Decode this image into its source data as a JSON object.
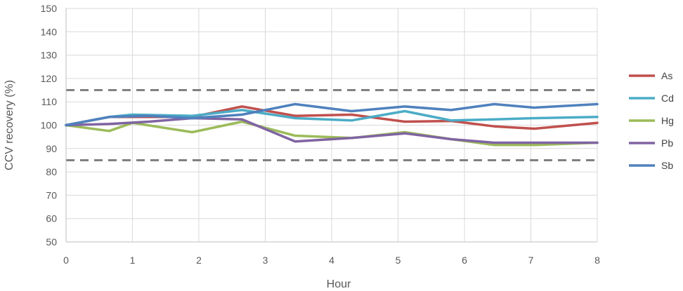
{
  "chart_data": {
    "type": "line",
    "xlabel": "Hour",
    "ylabel": "CCV recovery  (%)",
    "xlim": [
      0,
      8
    ],
    "ylim": [
      50,
      150
    ],
    "xticks": [
      "0",
      "1",
      "2",
      "3",
      "4",
      "5",
      "6",
      "7",
      "8"
    ],
    "yticks": [
      "50",
      "60",
      "70",
      "80",
      "90",
      "100",
      "110",
      "120",
      "130",
      "140",
      "150"
    ],
    "grid": "horizontal",
    "legend_position": "right",
    "control_limits": [
      {
        "value": 115,
        "color": "#808080",
        "style": "dashed"
      },
      {
        "value": 85,
        "color": "#808080",
        "style": "dashed"
      }
    ],
    "series": [
      {
        "name": "As",
        "color": "#C0504D",
        "points": [
          [
            0,
            100
          ],
          [
            0.65,
            103.5
          ],
          [
            1.25,
            103.5
          ],
          [
            1.9,
            103.5
          ],
          [
            2.65,
            108
          ],
          [
            3.45,
            104
          ],
          [
            4.3,
            104.5
          ],
          [
            5.1,
            101.5
          ],
          [
            5.8,
            101.8
          ],
          [
            6.45,
            99.5
          ],
          [
            7.05,
            98.5
          ],
          [
            8,
            101
          ]
        ]
      },
      {
        "name": "Cd",
        "color": "#4BACC6",
        "points": [
          [
            0,
            100
          ],
          [
            0.65,
            103.5
          ],
          [
            1.0,
            104.5
          ],
          [
            1.9,
            104
          ],
          [
            2.65,
            106.5
          ],
          [
            3.45,
            103
          ],
          [
            4.3,
            102
          ],
          [
            5.1,
            106
          ],
          [
            5.8,
            102
          ],
          [
            6.45,
            102.5
          ],
          [
            7.05,
            103
          ],
          [
            8,
            103.5
          ]
        ]
      },
      {
        "name": "Hg",
        "color": "#9BBB59",
        "points": [
          [
            0,
            100
          ],
          [
            0.65,
            97.5
          ],
          [
            1.0,
            101
          ],
          [
            1.9,
            97
          ],
          [
            2.65,
            101.5
          ],
          [
            3.45,
            95.5
          ],
          [
            4.3,
            94.5
          ],
          [
            5.1,
            97
          ],
          [
            5.8,
            94
          ],
          [
            6.45,
            91.5
          ],
          [
            7.05,
            91.5
          ],
          [
            8,
            92.5
          ]
        ]
      },
      {
        "name": "Pb",
        "color": "#8064A2",
        "points": [
          [
            0,
            100
          ],
          [
            0.65,
            100.5
          ],
          [
            1.25,
            101.5
          ],
          [
            1.9,
            103
          ],
          [
            2.65,
            102.5
          ],
          [
            3.45,
            93
          ],
          [
            4.3,
            94.5
          ],
          [
            5.1,
            96.5
          ],
          [
            5.8,
            94
          ],
          [
            6.45,
            92.5
          ],
          [
            7.05,
            92.5
          ],
          [
            8,
            92.5
          ]
        ]
      },
      {
        "name": "Sb",
        "color": "#4F81BD",
        "points": [
          [
            0,
            100
          ],
          [
            0.65,
            103.5
          ],
          [
            1.25,
            104
          ],
          [
            1.9,
            103
          ],
          [
            2.65,
            104.5
          ],
          [
            3.45,
            109
          ],
          [
            4.3,
            106
          ],
          [
            5.1,
            108
          ],
          [
            5.8,
            106.5
          ],
          [
            6.45,
            109
          ],
          [
            7.05,
            107.5
          ],
          [
            8,
            109
          ]
        ]
      }
    ]
  }
}
